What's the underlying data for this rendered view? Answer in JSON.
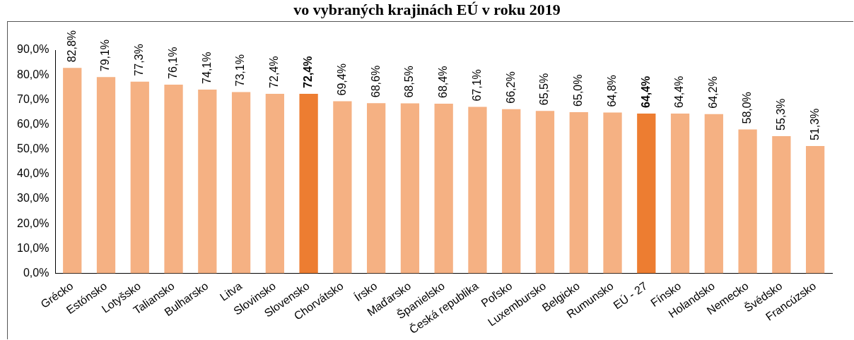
{
  "chart_data": {
    "type": "bar",
    "title": "vo vybraných krajinách EÚ v roku 2019",
    "categories": [
      "Grécko",
      "Estónsko",
      "Lotyšsko",
      "Taliansko",
      "Bulharsko",
      "Litva",
      "Slovinsko",
      "Slovensko",
      "Chorvátsko",
      "Írsko",
      "Maďarsko",
      "Španielsko",
      "Česká republika",
      "Poľsko",
      "Luxembursko",
      "Belgicko",
      "Rumunsko",
      "EÚ - 27",
      "Fínsko",
      "Holandsko",
      "Nemecko",
      "Švédsko",
      "Francúzsko"
    ],
    "values": [
      82.8,
      79.1,
      77.3,
      76.1,
      74.1,
      73.1,
      72.4,
      72.4,
      69.4,
      68.6,
      68.5,
      68.4,
      67.1,
      66.2,
      65.5,
      65.0,
      64.8,
      64.4,
      64.4,
      64.2,
      58.0,
      55.3,
      51.3
    ],
    "value_labels": [
      "82,8%",
      "79,1%",
      "77,3%",
      "76,1%",
      "74,1%",
      "73,1%",
      "72,4%",
      "72,4%",
      "69,4%",
      "68,6%",
      "68,5%",
      "68,4%",
      "67,1%",
      "66,2%",
      "65,5%",
      "65,0%",
      "64,8%",
      "64,4%",
      "64,4%",
      "64,2%",
      "58,0%",
      "55,3%",
      "51,3%"
    ],
    "colors": [
      "#f5b183",
      "#f5b183",
      "#f5b183",
      "#f5b183",
      "#f5b183",
      "#f5b183",
      "#f5b183",
      "#ed7d31",
      "#f5b183",
      "#f5b183",
      "#f5b183",
      "#f5b183",
      "#f5b183",
      "#f5b183",
      "#f5b183",
      "#f5b183",
      "#f5b183",
      "#ed7d31",
      "#f5b183",
      "#f5b183",
      "#f5b183",
      "#f5b183",
      "#f5b183"
    ],
    "ylim": [
      0,
      90
    ],
    "yticks": [
      {
        "value": 0,
        "label": "0,0%"
      },
      {
        "value": 10,
        "label": "10,0%"
      },
      {
        "value": 20,
        "label": "20,0%"
      },
      {
        "value": 30,
        "label": "30,0%"
      },
      {
        "value": 40,
        "label": "40,0%"
      },
      {
        "value": 50,
        "label": "50,0%"
      },
      {
        "value": 60,
        "label": "60,0%"
      },
      {
        "value": 70,
        "label": "70,0%"
      },
      {
        "value": 80,
        "label": "80,0%"
      },
      {
        "value": 90,
        "label": "90,0%"
      }
    ],
    "grid": false,
    "legend": false
  }
}
